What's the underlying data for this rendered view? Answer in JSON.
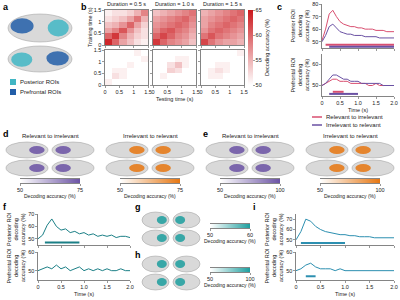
{
  "panel_labels": [
    "a",
    "b",
    "c",
    "d",
    "e",
    "f",
    "g",
    "h",
    "i"
  ],
  "roi_legend": [
    {
      "label": "Posterior ROIs",
      "color": "#41b6c4"
    },
    {
      "label": "Prefrontal ROIs",
      "color": "#225ea8"
    }
  ],
  "chart_data": [
    {
      "type": "heatmap",
      "title": "Duration = 0.5 s",
      "ylabel": "Training time (s)",
      "tick_labels": "y",
      "x": [
        0.125,
        0.375,
        0.625,
        0.875,
        1.125,
        1.375
      ],
      "y": [
        0.125,
        0.375,
        0.625,
        0.875,
        1.125,
        1.375
      ],
      "xlim": [
        0,
        1.5
      ],
      "xticks": [
        0,
        0.5,
        1,
        1.5
      ],
      "ylim": [
        0,
        1.5
      ],
      "yticks": [
        0,
        0.5,
        1,
        1.5
      ],
      "zlim": [
        50,
        65
      ],
      "color": "#cb181d",
      "colorbar": {
        "title": "Decoding accuracy (%)",
        "ticks": [
          50,
          55,
          60,
          65
        ]
      },
      "z": [
        [
          64,
          60,
          56,
          54,
          52,
          51
        ],
        [
          60,
          63,
          58,
          55,
          53,
          52
        ],
        [
          56,
          58,
          61,
          57,
          54,
          52
        ],
        [
          54,
          55,
          57,
          60,
          56,
          53
        ],
        [
          52,
          53,
          54,
          56,
          59,
          55
        ],
        [
          51,
          52,
          52,
          53,
          55,
          58
        ]
      ]
    },
    {
      "type": "heatmap",
      "title": "Duration = 1.0 s",
      "tick_labels": false,
      "x": [
        0.125,
        0.375,
        0.625,
        0.875,
        1.125,
        1.375
      ],
      "y": [
        0.125,
        0.375,
        0.625,
        0.875,
        1.125,
        1.375
      ],
      "xlim": [
        0,
        1.5
      ],
      "xticks": [
        0,
        0.5,
        1,
        1.5
      ],
      "ylim": [
        0,
        1.5
      ],
      "yticks": [
        0,
        0.5,
        1,
        1.5
      ],
      "zlim": [
        50,
        65
      ],
      "color": "#cb181d",
      "z": [
        [
          63,
          60,
          58,
          57,
          56,
          54
        ],
        [
          60,
          62,
          60,
          58,
          57,
          55
        ],
        [
          58,
          60,
          61,
          59,
          58,
          56
        ],
        [
          57,
          58,
          59,
          60,
          59,
          57
        ],
        [
          56,
          57,
          58,
          59,
          60,
          58
        ],
        [
          54,
          55,
          56,
          57,
          58,
          59
        ]
      ]
    },
    {
      "type": "heatmap",
      "title": "Duration = 1.5 s",
      "tick_labels": false,
      "x": [
        0.125,
        0.375,
        0.625,
        0.875,
        1.125,
        1.375
      ],
      "y": [
        0.125,
        0.375,
        0.625,
        0.875,
        1.125,
        1.375
      ],
      "xlim": [
        0,
        1.5
      ],
      "xticks": [
        0,
        0.5,
        1,
        1.5
      ],
      "ylim": [
        0,
        1.5
      ],
      "yticks": [
        0,
        0.5,
        1,
        1.5
      ],
      "zlim": [
        50,
        65
      ],
      "color": "#cb181d",
      "z": [
        [
          62,
          59,
          57,
          56,
          56,
          55
        ],
        [
          59,
          61,
          59,
          58,
          57,
          56
        ],
        [
          57,
          59,
          60,
          59,
          58,
          57
        ],
        [
          56,
          58,
          59,
          60,
          59,
          58
        ],
        [
          56,
          57,
          58,
          59,
          60,
          59
        ],
        [
          55,
          56,
          57,
          58,
          59,
          60
        ]
      ]
    },
    {
      "type": "heatmap",
      "x": [
        0.125,
        0.375,
        0.625,
        0.875,
        1.125,
        1.375
      ],
      "y": [
        0.125,
        0.375,
        0.625,
        0.875,
        1.125,
        1.375
      ],
      "xlim": [
        0,
        1.5
      ],
      "xticks": [
        0,
        0.5,
        1,
        1.5
      ],
      "ylim": [
        0,
        1.5
      ],
      "yticks": [
        0,
        0.5,
        1,
        1.5
      ],
      "zlim": [
        50,
        65
      ],
      "color": "#cb181d",
      "z": [
        [
          51,
          50,
          50,
          50,
          50,
          50
        ],
        [
          50,
          52,
          51,
          50,
          50,
          50
        ],
        [
          50,
          51,
          51,
          50,
          50,
          50
        ],
        [
          50,
          50,
          50,
          51,
          50,
          50
        ],
        [
          50,
          50,
          50,
          50,
          50,
          51
        ],
        [
          50,
          50,
          50,
          50,
          51,
          50
        ]
      ]
    },
    {
      "type": "heatmap",
      "xlabel": "Testing time (s)",
      "tick_labels": "x",
      "x": [
        0.125,
        0.375,
        0.625,
        0.875,
        1.125,
        1.375
      ],
      "y": [
        0.125,
        0.375,
        0.625,
        0.875,
        1.125,
        1.375
      ],
      "xlim": [
        0,
        1.5
      ],
      "xticks": [
        0,
        0.5,
        1,
        1.5
      ],
      "ylim": [
        0,
        1.5
      ],
      "yticks": [
        0,
        0.5,
        1,
        1.5
      ],
      "zlim": [
        50,
        65
      ],
      "color": "#cb181d",
      "z": [
        [
          50,
          50,
          50,
          50,
          50,
          50
        ],
        [
          50,
          51,
          50,
          50,
          50,
          50
        ],
        [
          50,
          50,
          53,
          52,
          50,
          50
        ],
        [
          50,
          50,
          52,
          54,
          51,
          50
        ],
        [
          50,
          50,
          50,
          51,
          51,
          50
        ],
        [
          50,
          50,
          50,
          50,
          50,
          50
        ]
      ]
    },
    {
      "type": "heatmap",
      "tick_labels": "x",
      "x": [
        0.125,
        0.375,
        0.625,
        0.875,
        1.125,
        1.375
      ],
      "y": [
        0.125,
        0.375,
        0.625,
        0.875,
        1.125,
        1.375
      ],
      "xlim": [
        0,
        1.5
      ],
      "xticks": [
        0,
        0.5,
        1,
        1.5
      ],
      "ylim": [
        0,
        1.5
      ],
      "yticks": [
        0,
        0.5,
        1,
        1.5
      ],
      "zlim": [
        50,
        65
      ],
      "color": "#cb181d",
      "z": [
        [
          50,
          50,
          50,
          50,
          50,
          50
        ],
        [
          50,
          51,
          51,
          50,
          50,
          50
        ],
        [
          50,
          51,
          52,
          51,
          50,
          50
        ],
        [
          50,
          50,
          51,
          51,
          50,
          50
        ],
        [
          50,
          50,
          50,
          50,
          50,
          50
        ],
        [
          50,
          50,
          50,
          50,
          50,
          51
        ]
      ]
    },
    {
      "type": "line",
      "ylabel": "Posterior ROI\ndecoding\naccuracy (%)",
      "tick_labels": "y",
      "legend": "bottom",
      "x": [
        0,
        0.1,
        0.2,
        0.3,
        0.4,
        0.5,
        0.6,
        0.7,
        0.8,
        0.9,
        1,
        1.1,
        1.2,
        1.3,
        1.4,
        1.5,
        1.6,
        1.7,
        1.8,
        1.9,
        2
      ],
      "xlim": [
        0,
        2
      ],
      "xticks": [
        0,
        0.5,
        {
          "value": 1,
          "label": "1.0"
        },
        1.5,
        {
          "value": 2,
          "label": "2.0"
        }
      ],
      "ylim": [
        45,
        80
      ],
      "yticks": [
        50,
        60,
        70,
        80
      ],
      "series": [
        {
          "name": "Relevant to irrelevant",
          "color": "#d94f70",
          "values": [
            51,
            60,
            72,
            75,
            70,
            66,
            64,
            63,
            62,
            62,
            61,
            61,
            60,
            60,
            60,
            59,
            59,
            59,
            58,
            58,
            58
          ],
          "significance": [
            {
              "start": 0.1,
              "end": 2,
              "y": 47.5
            }
          ]
        },
        {
          "name": "Irrelevant to relevant",
          "color": "#6a51a3",
          "values": [
            50,
            55,
            62,
            64,
            61,
            58,
            57,
            56,
            56,
            55,
            55,
            55,
            54,
            54,
            54,
            54,
            53,
            53,
            53,
            53,
            53
          ],
          "significance": [
            {
              "start": 0.2,
              "end": 2,
              "y": 46
            }
          ]
        }
      ]
    },
    {
      "type": "line",
      "ylabel": "Prefrontal ROI\ndecoding\naccuracy (%)",
      "xlabel": "Time (s)",
      "x": [
        0,
        0.1,
        0.2,
        0.3,
        0.4,
        0.5,
        0.6,
        0.7,
        0.8,
        0.9,
        1,
        1.1,
        1.2,
        1.3,
        1.4,
        1.5,
        1.6,
        1.7,
        1.8,
        1.9,
        2
      ],
      "xlim": [
        0,
        2
      ],
      "xticks": [
        0,
        0.5,
        {
          "value": 1,
          "label": "1.0"
        },
        1.5,
        {
          "value": 2,
          "label": "2.0"
        }
      ],
      "ylim": [
        45,
        65
      ],
      "yticks": [
        50,
        60
      ],
      "series": [
        {
          "color": "#d94f70",
          "values": [
            50,
            51,
            52,
            53,
            53,
            52,
            52,
            52,
            51,
            51,
            51,
            51,
            51,
            50,
            50,
            51,
            50,
            50,
            50,
            50,
            50
          ],
          "significance": [
            {
              "start": 0.3,
              "end": 0.6,
              "y": 47
            }
          ]
        },
        {
          "color": "#6a51a3",
          "values": [
            50,
            51,
            53,
            55,
            55,
            54,
            53,
            53,
            52,
            52,
            52,
            51,
            51,
            51,
            51,
            51,
            51,
            50,
            50,
            50,
            50
          ],
          "significance": [
            {
              "start": 0.2,
              "end": 1,
              "y": 46
            }
          ]
        }
      ]
    },
    {
      "type": "colorbar",
      "subtitle": "Relevant to irrelevant",
      "xlabel": "Decoding accuracy (%)",
      "xlim": [
        50,
        75
      ],
      "xticks": [
        50,
        75
      ],
      "color": "#6a51a3"
    },
    {
      "type": "colorbar",
      "subtitle": "Irrelevant to relevant",
      "xlabel": "Decoding accuracy (%)",
      "xlim": [
        50,
        75
      ],
      "xticks": [
        50,
        75
      ],
      "color": "#e6750f"
    },
    {
      "type": "colorbar",
      "subtitle": "Relevant to irrelevant",
      "xlabel": "Decoding accuracy (%)",
      "xlim": [
        50,
        100
      ],
      "xticks": [
        50,
        100
      ],
      "color": "#6a51a3"
    },
    {
      "type": "colorbar",
      "subtitle": "Irrelevant to relevant",
      "xlabel": "Decoding accuracy (%)",
      "xlim": [
        50,
        100
      ],
      "xticks": [
        50,
        100
      ],
      "color": "#e6750f"
    },
    {
      "type": "line",
      "ylabel": "Posterior ROI\ndecoding\naccuracy (%)",
      "tick_labels": "y",
      "x": [
        0,
        0.1,
        0.2,
        0.3,
        0.4,
        0.5,
        0.6,
        0.7,
        0.8,
        0.9,
        1,
        1.1,
        1.2,
        1.3,
        1.4,
        1.5,
        1.6,
        1.7,
        1.8,
        1.9,
        2
      ],
      "xlim": [
        0,
        2
      ],
      "xticks": [
        0,
        0.5,
        {
          "value": 1,
          "label": "1.0"
        },
        1.5,
        {
          "value": 2,
          "label": "2.0"
        }
      ],
      "ylim": [
        45,
        70
      ],
      "yticks": [
        50,
        60,
        70
      ],
      "series": [
        {
          "color": "#1b7f86",
          "values": [
            50,
            53,
            61,
            66,
            60,
            57,
            58,
            55,
            56,
            54,
            55,
            53,
            54,
            52,
            53,
            52,
            53,
            51,
            52,
            52,
            51
          ],
          "significance": [
            {
              "start": 0.15,
              "end": 0.9,
              "y": 47
            }
          ]
        }
      ]
    },
    {
      "type": "line",
      "ylabel": "Prefrontal ROI\ndecoding\naccuracy (%)",
      "xlabel": "Time (s)",
      "x": [
        0,
        0.1,
        0.2,
        0.3,
        0.4,
        0.5,
        0.6,
        0.7,
        0.8,
        0.9,
        1,
        1.1,
        1.2,
        1.3,
        1.4,
        1.5,
        1.6,
        1.7,
        1.8,
        1.9,
        2
      ],
      "xlim": [
        0,
        2
      ],
      "xticks": [
        0,
        0.5,
        {
          "value": 1,
          "label": "1.0"
        },
        1.5,
        {
          "value": 2,
          "label": "2.0"
        }
      ],
      "ylim": [
        45,
        60
      ],
      "yticks": [
        50,
        60
      ],
      "series": [
        {
          "color": "#1b7f86",
          "values": [
            50,
            51,
            52,
            51,
            53,
            51,
            52,
            50,
            51,
            52,
            50,
            51,
            50,
            51,
            50,
            51,
            50,
            50,
            51,
            50,
            50
          ]
        }
      ]
    },
    {
      "type": "colorbar",
      "xlabel": "Decoding accuracy (%)",
      "xlim": [
        50,
        60
      ],
      "xticks": [
        50,
        60
      ],
      "color": "#1b9e9e"
    },
    {
      "type": "colorbar",
      "xlabel": "Decoding accuracy (%)",
      "xlim": [
        50,
        100
      ],
      "xticks": [
        50,
        100
      ],
      "color": "#1b9e9e"
    },
    {
      "type": "line",
      "ylabel": "Posterior ROI\ndecoding\naccuracy (%)",
      "tick_labels": "y",
      "x": [
        0,
        0.1,
        0.2,
        0.3,
        0.4,
        0.5,
        0.6,
        0.7,
        0.8,
        0.9,
        1,
        1.1,
        1.2,
        1.3,
        1.4,
        1.5,
        1.6,
        1.7,
        1.8,
        1.9,
        2
      ],
      "xlim": [
        0,
        2
      ],
      "xticks": [
        0,
        0.5,
        {
          "value": 1,
          "label": "1.0"
        },
        1.5,
        {
          "value": 2,
          "label": "2.0"
        }
      ],
      "ylim": [
        45,
        75
      ],
      "yticks": [
        50,
        60,
        70
      ],
      "series": [
        {
          "color": "#2c8fb0",
          "values": [
            50,
            58,
            70,
            68,
            63,
            60,
            58,
            57,
            56,
            55,
            55,
            54,
            54,
            53,
            53,
            53,
            52,
            52,
            52,
            52,
            52
          ],
          "significance": [
            {
              "start": 0.1,
              "end": 1,
              "y": 47
            }
          ]
        }
      ]
    },
    {
      "type": "line",
      "ylabel": "Prefrontal ROI\ndecoding\naccuracy (%)",
      "xlabel": "Time (s)",
      "x": [
        0,
        0.1,
        0.2,
        0.3,
        0.4,
        0.5,
        0.6,
        0.7,
        0.8,
        0.9,
        1,
        1.1,
        1.2,
        1.3,
        1.4,
        1.5,
        1.6,
        1.7,
        1.8,
        1.9,
        2
      ],
      "xlim": [
        0,
        2
      ],
      "xticks": [
        0,
        0.5,
        {
          "value": 1,
          "label": "1.0"
        },
        1.5,
        {
          "value": 2,
          "label": "2.0"
        }
      ],
      "ylim": [
        45,
        60
      ],
      "yticks": [
        50,
        60
      ],
      "series": [
        {
          "color": "#2c8fb0",
          "values": [
            50,
            51,
            53,
            54,
            52,
            51,
            51,
            51,
            50,
            51,
            50,
            50,
            50,
            50,
            50,
            50,
            50,
            50,
            50,
            50,
            50
          ],
          "significance": [
            {
              "start": 0.2,
              "end": 0.4,
              "y": 47
            }
          ]
        }
      ]
    }
  ]
}
